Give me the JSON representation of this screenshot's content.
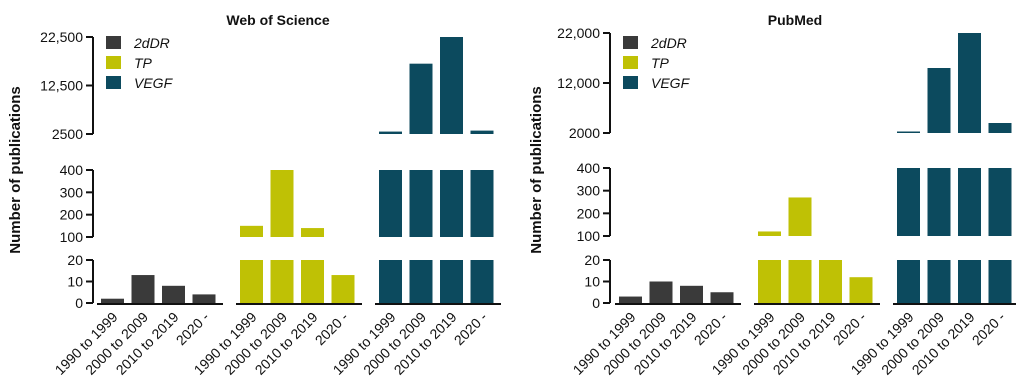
{
  "colors": {
    "2dDR": "#3a3a3a",
    "TP": "#bfc105",
    "VEGF": "#0c4a5e"
  },
  "chart_data": [
    {
      "type": "bar",
      "title": "Web of Science",
      "ylabel": "Number of publications",
      "scale": "broken y-axis (segments 0-20, 100-400, 2500-22500)",
      "groups": [
        "2dDR",
        "TP",
        "VEGF"
      ],
      "categories": [
        "1990 to 1999",
        "2000 to 2009",
        "2010 to 2019",
        "2020 -"
      ],
      "series": [
        {
          "name": "2dDR",
          "values": [
            2,
            13,
            8,
            4
          ]
        },
        {
          "name": "TP",
          "values": [
            150,
            400,
            140,
            13
          ]
        },
        {
          "name": "VEGF",
          "values": [
            3000,
            17000,
            22500,
            3200
          ]
        }
      ],
      "yticks": [
        {
          "segment": "low",
          "values": [
            0,
            10,
            20
          ],
          "labels": [
            "0",
            "10",
            "20"
          ]
        },
        {
          "segment": "mid",
          "values": [
            100,
            200,
            300,
            400
          ],
          "labels": [
            "100",
            "200",
            "300",
            "400"
          ]
        },
        {
          "segment": "high",
          "values": [
            2500,
            12500,
            22500
          ],
          "labels": [
            "2500",
            "12,500",
            "22,500"
          ]
        }
      ],
      "legend": [
        "2dDR",
        "TP",
        "VEGF"
      ],
      "legend_position": "top-left"
    },
    {
      "type": "bar",
      "title": "PubMed",
      "ylabel": "Number of publications",
      "scale": "broken y-axis (segments 0-20, 100-400, 2000-22000)",
      "groups": [
        "2dDR",
        "TP",
        "VEGF"
      ],
      "categories": [
        "1990 to 1999",
        "2000 to 2009",
        "2010 to 2019",
        "2020 -"
      ],
      "series": [
        {
          "name": "2dDR",
          "values": [
            3,
            10,
            8,
            5
          ]
        },
        {
          "name": "TP",
          "values": [
            120,
            270,
            95,
            12
          ]
        },
        {
          "name": "VEGF",
          "values": [
            2300,
            15000,
            22500,
            4000
          ]
        }
      ],
      "yticks": [
        {
          "segment": "low",
          "values": [
            0,
            10,
            20
          ],
          "labels": [
            "0",
            "10",
            "20"
          ]
        },
        {
          "segment": "mid",
          "values": [
            100,
            200,
            300,
            400
          ],
          "labels": [
            "100",
            "200",
            "300",
            "400"
          ]
        },
        {
          "segment": "high",
          "values": [
            2000,
            12000,
            22000
          ],
          "labels": [
            "2000",
            "12,000",
            "22,000"
          ]
        }
      ],
      "legend": [
        "2dDR",
        "TP",
        "VEGF"
      ],
      "legend_position": "top-left"
    }
  ]
}
